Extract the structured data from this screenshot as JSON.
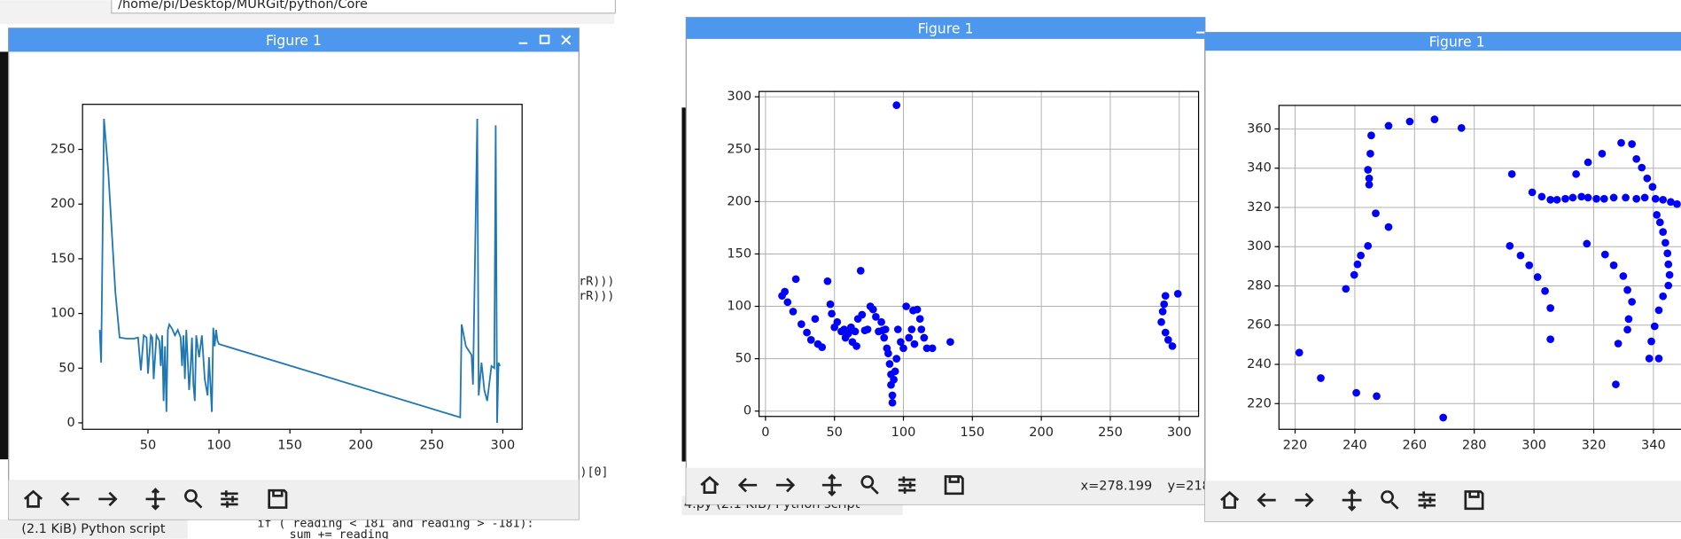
{
  "background": {
    "path": "/home/pi/Desktop/MURGit/python/Core",
    "file_info_left": "(2.1 KiB) Python script",
    "file_info_right": "4.py  (2.1 KiB) Python script",
    "code_lines": [
      "if ( reading < 181 and reading > -181):",
      "sum += reading"
    ],
    "code_fragments": [
      "rR)))",
      "rR)))",
      ")[0]"
    ]
  },
  "windows": [
    {
      "title": "Figure 1",
      "chart_data": {
        "type": "line",
        "color": "#1f77b4",
        "grid": false,
        "x": [
          16,
          17,
          19,
          22,
          27,
          30,
          35,
          40,
          43,
          45,
          47,
          49,
          50,
          52,
          53,
          54,
          56,
          58,
          59,
          60,
          61,
          62,
          63,
          64,
          65,
          67,
          69,
          71,
          73,
          74,
          75,
          76,
          77,
          79,
          80,
          81,
          82,
          83,
          84,
          86,
          88,
          90,
          92,
          93,
          95,
          96,
          97,
          98,
          99,
          100,
          270,
          271,
          274,
          278,
          279,
          282,
          283,
          284,
          285,
          287,
          289,
          292,
          294,
          295,
          296,
          297,
          298
        ],
        "values": [
          85,
          55,
          278,
          230,
          120,
          78,
          77,
          77,
          78,
          48,
          80,
          78,
          45,
          80,
          78,
          40,
          80,
          75,
          52,
          80,
          20,
          70,
          10,
          85,
          90,
          86,
          80,
          85,
          78,
          52,
          80,
          40,
          85,
          30,
          50,
          78,
          35,
          20,
          80,
          60,
          80,
          40,
          25,
          60,
          10,
          87,
          70,
          85,
          75,
          72,
          5,
          90,
          70,
          62,
          35,
          278,
          25,
          40,
          55,
          30,
          20,
          52,
          50,
          272,
          0,
          55,
          52
        ],
        "xlim": [
          3.9,
          313.6
        ],
        "ylim": [
          -5.9,
          291.2
        ],
        "xticks": [
          50,
          100,
          150,
          200,
          250,
          300
        ],
        "yticks": [
          0,
          50,
          100,
          150,
          200,
          250
        ]
      }
    },
    {
      "title": "Figure 1",
      "status": [
        "x=278.199",
        "y=218"
      ],
      "chart_data": {
        "type": "scatter",
        "color": "#0000ff",
        "grid": true,
        "x": [
          95,
          12,
          14,
          16,
          20,
          22,
          26,
          30,
          33,
          36,
          38,
          41,
          45,
          47,
          48,
          50,
          52,
          55,
          57,
          58,
          60,
          62,
          63,
          65,
          66,
          67,
          69,
          70,
          72,
          74,
          76,
          78,
          80,
          82,
          84,
          85,
          86,
          87,
          88,
          89,
          90,
          91,
          91,
          92,
          92,
          93,
          94,
          95,
          96,
          98,
          100,
          102,
          104,
          106,
          107,
          108,
          110,
          112,
          113,
          115,
          117,
          121,
          134,
          287,
          288,
          289,
          290,
          290,
          292,
          295,
          299
        ],
        "values": [
          292,
          110,
          114,
          104,
          95,
          126,
          83,
          75,
          68,
          88,
          64,
          61,
          124,
          102,
          93,
          80,
          85,
          76,
          78,
          70,
          74,
          80,
          66,
          76,
          62,
          88,
          134,
          92,
          77,
          78,
          100,
          97,
          90,
          76,
          85,
          77,
          70,
          78,
          60,
          55,
          45,
          35,
          25,
          15,
          8,
          30,
          38,
          50,
          78,
          66,
          60,
          100,
          70,
          78,
          96,
          64,
          97,
          88,
          78,
          70,
          60,
          60,
          66,
          85,
          95,
          102,
          110,
          75,
          68,
          62,
          112
        ],
        "xlim": [
          -4.7,
          314.0
        ],
        "ylim": [
          -5.1,
          305.1
        ],
        "xticks": [
          0,
          50,
          100,
          150,
          200,
          250,
          300
        ],
        "yticks": [
          0,
          50,
          100,
          150,
          200,
          250,
          300
        ]
      }
    },
    {
      "title": "Figure 1",
      "chart_data": {
        "type": "scatter",
        "color": "#0000ff",
        "grid": true,
        "x": [
          221.4,
          228.6,
          237,
          239.8,
          240.9,
          242,
          244.4,
          244.8,
          244.4,
          245.2,
          245.5,
          247,
          244.8,
          251.3,
          251.3,
          258.4,
          266.7,
          275.7,
          240.5,
          247.3,
          269.6,
          292.6,
          291.9,
          295.5,
          298.4,
          301.2,
          303.7,
          305.5,
          305.5,
          299.4,
          302.6,
          305.5,
          307.7,
          310.5,
          313,
          315.9,
          318.1,
          320.9,
          323.5,
          326.7,
          330.7,
          334.3,
          337.1,
          340.7,
          343.2,
          345.8,
          314.1,
          318.1,
          322.8,
          329.2,
          332.8,
          334.3,
          336.1,
          337.9,
          339.7,
          341.1,
          342.2,
          343.2,
          344,
          344.7,
          345,
          345.4,
          345,
          343.2,
          341.8,
          340.4,
          339.3,
          338.6,
          327.4,
          341.8,
          317.7,
          323.8,
          326.7,
          329.9,
          331.3,
          332.8,
          331.7,
          331.3,
          328.2,
          347.9
        ],
        "values": [
          246,
          233,
          278.5,
          285.6,
          291,
          295.5,
          300.4,
          334.8,
          339.2,
          347.4,
          356.7,
          317,
          331.6,
          310,
          361.6,
          363.8,
          364.9,
          360.5,
          225.5,
          223.8,
          212.9,
          337,
          300.4,
          295.5,
          290.5,
          284.5,
          277.4,
          268.7,
          252.8,
          327.7,
          325.5,
          323.9,
          323.9,
          324.4,
          325,
          325.5,
          325,
          324.4,
          324.4,
          325,
          325,
          324.4,
          325,
          324.4,
          323.9,
          322.8,
          337,
          343,
          347.4,
          352.9,
          352.3,
          344.7,
          340.3,
          334.8,
          330.5,
          316.2,
          312.4,
          307.5,
          302,
          296.6,
          291,
          285.6,
          280.2,
          274.7,
          267.6,
          259.4,
          251.7,
          243,
          229.8,
          243,
          301.5,
          296,
          290.5,
          285,
          277.9,
          271.9,
          263.1,
          257.7,
          250.6,
          321.7
        ],
        "xlim": [
          214.6,
          360
        ],
        "ylim": [
          206.9,
          372
        ],
        "xticks": [
          220,
          240,
          260,
          280,
          300,
          320,
          340
        ],
        "yticks": [
          220,
          240,
          260,
          280,
          300,
          320,
          340,
          360
        ]
      }
    }
  ]
}
